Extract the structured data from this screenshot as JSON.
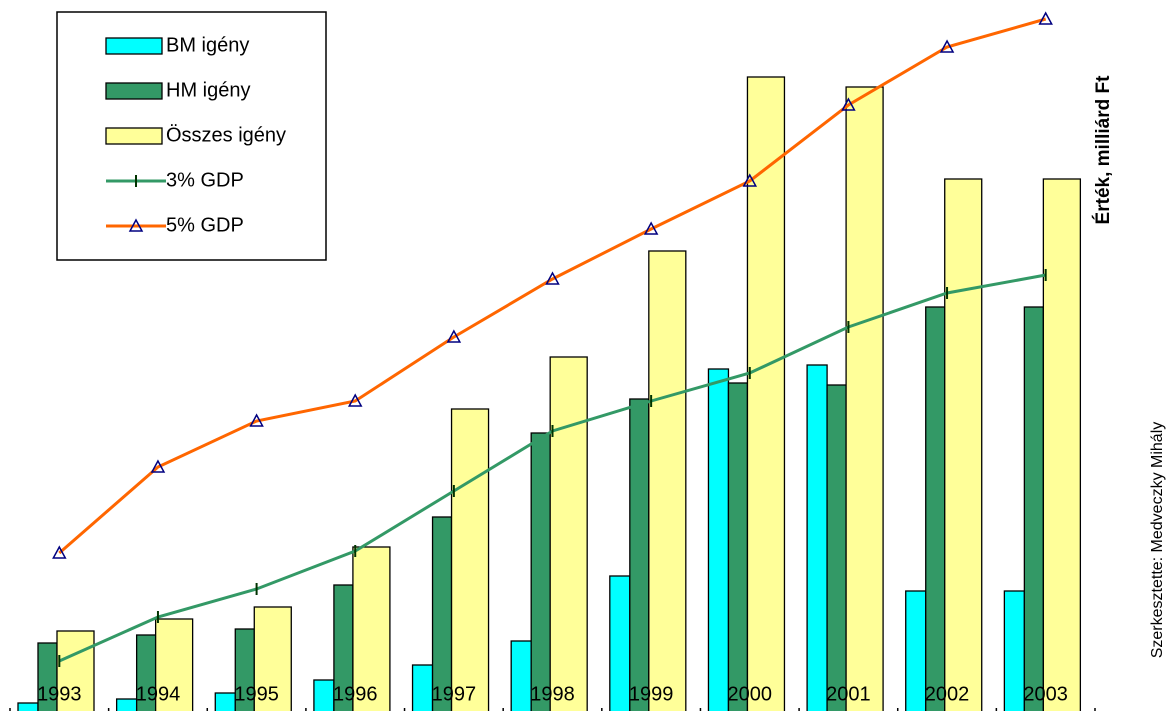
{
  "chart_data": {
    "type": "bar",
    "y_label": "Érték, milliárd Ft",
    "credit": "Szerkesztette: Medveczky Mihály",
    "categories": [
      "1993",
      "1994",
      "1995",
      "1996",
      "1997",
      "1998",
      "1999",
      "2000",
      "2001",
      "2002",
      "2003"
    ],
    "series": [
      {
        "name": "BM igény",
        "type": "bar",
        "color": "#00ffff",
        "values": [
          12,
          16,
          22,
          35,
          50,
          74,
          139,
          346,
          350,
          124,
          124
        ]
      },
      {
        "name": "HM igény",
        "type": "bar",
        "color": "#339966",
        "values": [
          72,
          80,
          86,
          130,
          198,
          282,
          316,
          332,
          330,
          408,
          408
        ]
      },
      {
        "name": "Összes igény",
        "type": "bar",
        "color": "#ffff99",
        "values": [
          84,
          96,
          108,
          168,
          306,
          358,
          464,
          638,
          628,
          536,
          536
        ]
      },
      {
        "name": "3% GDP",
        "type": "line",
        "marker": "tick",
        "color": "#339966",
        "values": [
          54,
          98,
          126,
          164,
          224,
          284,
          314,
          342,
          388,
          422,
          440
        ]
      },
      {
        "name": "5% GDP",
        "type": "line",
        "marker": "triangle",
        "color": "#ff6600",
        "values": [
          162,
          248,
          294,
          314,
          378,
          436,
          486,
          534,
          610,
          668,
          696
        ]
      }
    ],
    "ylim": [
      0,
      705
    ],
    "legend": "upper left"
  }
}
